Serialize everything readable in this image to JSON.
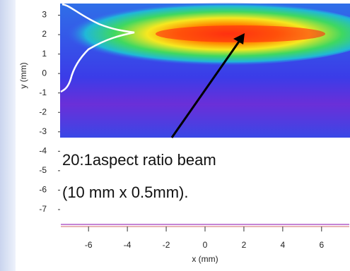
{
  "chart_data": {
    "type": "image",
    "x_label": "x (mm)",
    "y_label": "y (mm)",
    "annotations": [
      "20:1aspect ratio beam",
      "(10 mm x 0.5mm)."
    ],
    "xlim": [
      -7.5,
      7.5
    ],
    "xticks": [
      -6,
      -4,
      -2,
      0,
      2,
      4,
      6
    ],
    "ylim": [
      -7.8,
      3.6
    ],
    "yticks": [
      -7,
      -6,
      -5,
      -4,
      -3,
      -2,
      -1,
      0,
      1,
      2,
      3
    ],
    "grid": false
  }
}
